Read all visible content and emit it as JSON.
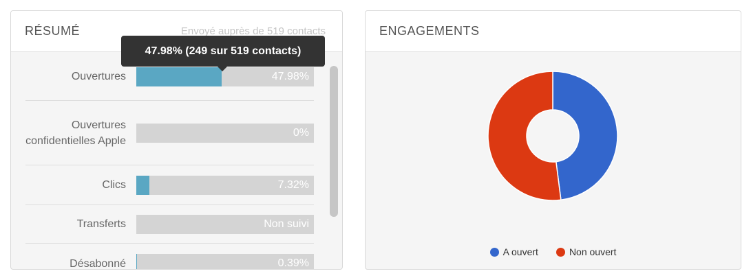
{
  "resume": {
    "title": "RÉSUMÉ",
    "subtitle": "Envoyé auprès de 519 contacts",
    "tooltip": "47.98% (249 sur 519 contacts)",
    "rows": [
      {
        "label": "Ouvertures",
        "value_text": "47.98%",
        "fill": 0.4798
      },
      {
        "label": "Ouvertures confidentielles Apple",
        "value_text": "0%",
        "fill": 0
      },
      {
        "label": "Clics",
        "value_text": "7.32%",
        "fill": 0.0732
      },
      {
        "label": "Transferts",
        "value_text": "Non suivi",
        "fill": 0
      },
      {
        "label": "Désabonné",
        "value_text": "0.39%",
        "fill": 0.0039
      }
    ]
  },
  "engagements": {
    "title": "ENGAGEMENTS",
    "chart_data": {
      "type": "pie",
      "variant": "donut",
      "categories": [
        "A ouvert",
        "Non ouvert"
      ],
      "values": [
        47.98,
        52.02
      ],
      "colors": [
        "#3366cc",
        "#dc3912"
      ],
      "legend_position": "bottom"
    },
    "legend": [
      {
        "label": "A ouvert",
        "color": "#3366cc"
      },
      {
        "label": "Non ouvert",
        "color": "#dc3912"
      }
    ]
  },
  "colors": {
    "bar_fill": "#5aa7c3",
    "bar_track": "#d4d4d4",
    "tooltip_bg": "#333333"
  }
}
